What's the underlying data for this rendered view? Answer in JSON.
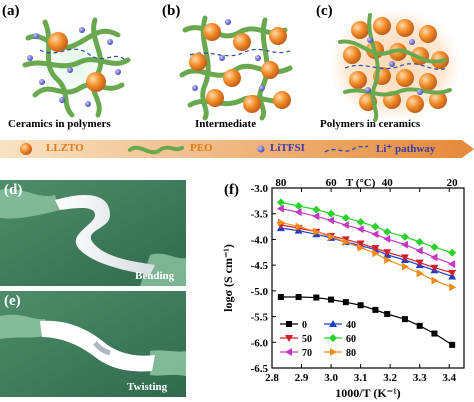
{
  "panels": {
    "a": {
      "tag": "(a)",
      "caption": "Ceramics in polymers"
    },
    "b": {
      "tag": "(b)",
      "caption": "Intermediate"
    },
    "c": {
      "tag": "(c)",
      "caption": "Polymers in ceramics"
    },
    "d": {
      "tag": "(d)",
      "caption": "Bending"
    },
    "e": {
      "tag": "(e)",
      "caption": "Twisting"
    },
    "f": {
      "tag": "(f)"
    }
  },
  "legend_top": {
    "llzto": "LLZTO",
    "peo": "PEO",
    "litfsi": "LiTFSI",
    "pathway": "Li⁺ pathway"
  },
  "colors": {
    "llzto": "#f28c28",
    "peo": "#6aa84f",
    "litfsi": "#6a6ad6",
    "pathway": "#2b4ba8",
    "arrow_start": "#f7d9b0",
    "arrow_end": "#e6893a"
  },
  "chart_data": {
    "type": "line",
    "xlabel": "1000/T (K⁻¹)",
    "ylabel": "logσ (S cm⁻¹)",
    "top_axis_label": "T (°C)",
    "top_ticks": [
      "80",
      "60",
      "40",
      "20"
    ],
    "top_tick_positions": [
      2.83,
      3.0,
      3.19,
      3.41
    ],
    "xlim": [
      2.8,
      3.45
    ],
    "ylim": [
      -6.5,
      -3.0
    ],
    "x_ticks": [
      "2.8",
      "2.9",
      "3.0",
      "3.1",
      "3.2",
      "3.3",
      "3.4"
    ],
    "y_ticks": [
      "-3.0",
      "-3.5",
      "-4.0",
      "-4.5",
      "-5.0",
      "-5.5",
      "-6.0",
      "-6.5"
    ],
    "x": [
      2.83,
      2.89,
      2.95,
      3.0,
      3.05,
      3.1,
      3.15,
      3.19,
      3.25,
      3.3,
      3.35,
      3.41
    ],
    "legend_placement": "bottom-left",
    "series": [
      {
        "name": "0",
        "color": "#000000",
        "marker": "square",
        "values": [
          -5.12,
          -5.12,
          -5.13,
          -5.17,
          -5.22,
          -5.28,
          -5.37,
          -5.45,
          -5.55,
          -5.68,
          -5.83,
          -6.05
        ]
      },
      {
        "name": "40",
        "color": "#1a3fc4",
        "marker": "triangle-up",
        "values": [
          -3.78,
          -3.83,
          -3.9,
          -3.97,
          -4.05,
          -4.12,
          -4.2,
          -4.3,
          -4.4,
          -4.5,
          -4.6,
          -4.72
        ]
      },
      {
        "name": "50",
        "color": "#d0202a",
        "marker": "triangle-down",
        "values": [
          -3.72,
          -3.78,
          -3.85,
          -3.93,
          -4.0,
          -4.08,
          -4.17,
          -4.25,
          -4.35,
          -4.45,
          -4.55,
          -4.65
        ]
      },
      {
        "name": "60",
        "color": "#2bd12b",
        "marker": "diamond",
        "values": [
          -3.28,
          -3.35,
          -3.42,
          -3.5,
          -3.58,
          -3.66,
          -3.75,
          -3.85,
          -3.95,
          -4.05,
          -4.15,
          -4.26
        ]
      },
      {
        "name": "70",
        "color": "#c23ac2",
        "marker": "triangle-left",
        "values": [
          -3.4,
          -3.47,
          -3.55,
          -3.63,
          -3.72,
          -3.8,
          -3.9,
          -3.99,
          -4.1,
          -4.22,
          -4.35,
          -4.48
        ]
      },
      {
        "name": "80",
        "color": "#f08a1a",
        "marker": "triangle-right",
        "values": [
          -3.67,
          -3.75,
          -3.85,
          -3.95,
          -4.05,
          -4.16,
          -4.27,
          -4.4,
          -4.53,
          -4.66,
          -4.8,
          -4.93
        ]
      }
    ]
  }
}
